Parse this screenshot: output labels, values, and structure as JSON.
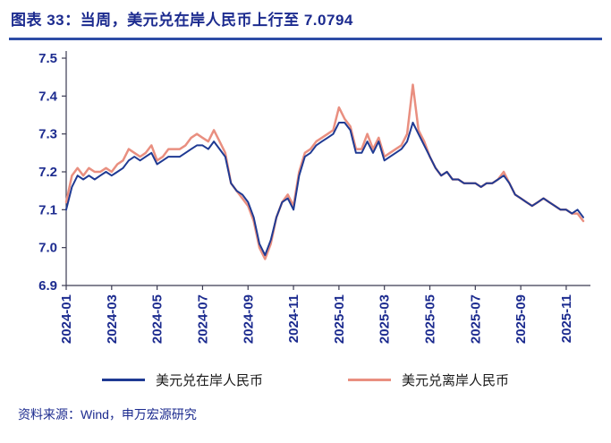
{
  "title": "图表 33：当周，美元兑在岸人民币上行至 7.0794",
  "source": "资料来源：Wind，申万宏源研究",
  "colors": {
    "title_text": "#1c2b8f",
    "rule": "#2e4da6",
    "axis_text": "#1c2b8f",
    "axis_line": "#3b3b52",
    "onshore": "#1f3a93",
    "offshore": "#e98f80"
  },
  "legend": [
    {
      "label": "美元兑在岸人民币",
      "color": "#1f3a93"
    },
    {
      "label": "美元兑离岸人民币",
      "color": "#e98f80"
    }
  ],
  "chart_data": {
    "type": "line",
    "title": "图表 33：当周，美元兑在岸人民币上行至 7.0794",
    "latest_onshore_value": 7.0794,
    "ylim": [
      6.9,
      7.5
    ],
    "y_ticks": [
      6.9,
      7.0,
      7.1,
      7.2,
      7.3,
      7.4,
      7.5
    ],
    "x_tick_labels": [
      "2024-01",
      "2024-03",
      "2024-05",
      "2024-07",
      "2024-09",
      "2024-11",
      "2025-01",
      "2025-03",
      "2025-05",
      "2025-07",
      "2025-09",
      "2025-11"
    ],
    "x_tick_every_points": 8,
    "grid": false,
    "legend_position": "bottom",
    "series": [
      {
        "name": "美元兑在岸人民币",
        "color": "#1f3a93",
        "values": [
          7.1,
          7.16,
          7.19,
          7.18,
          7.19,
          7.18,
          7.19,
          7.2,
          7.19,
          7.2,
          7.21,
          7.23,
          7.24,
          7.23,
          7.24,
          7.25,
          7.22,
          7.23,
          7.24,
          7.24,
          7.24,
          7.25,
          7.26,
          7.27,
          7.27,
          7.26,
          7.28,
          7.26,
          7.24,
          7.17,
          7.15,
          7.14,
          7.12,
          7.08,
          7.01,
          6.98,
          7.02,
          7.08,
          7.12,
          7.13,
          7.1,
          7.19,
          7.24,
          7.25,
          7.27,
          7.28,
          7.29,
          7.3,
          7.33,
          7.33,
          7.31,
          7.25,
          7.25,
          7.28,
          7.25,
          7.28,
          7.23,
          7.24,
          7.25,
          7.26,
          7.28,
          7.33,
          7.3,
          7.27,
          7.24,
          7.21,
          7.19,
          7.2,
          7.18,
          7.18,
          7.17,
          7.17,
          7.17,
          7.16,
          7.17,
          7.17,
          7.18,
          7.19,
          7.17,
          7.14,
          7.13,
          7.12,
          7.11,
          7.12,
          7.13,
          7.12,
          7.11,
          7.1,
          7.1,
          7.09,
          7.1,
          7.08
        ]
      },
      {
        "name": "美元兑离岸人民币",
        "color": "#e98f80",
        "values": [
          7.12,
          7.19,
          7.21,
          7.19,
          7.21,
          7.2,
          7.2,
          7.21,
          7.2,
          7.22,
          7.23,
          7.26,
          7.25,
          7.24,
          7.25,
          7.27,
          7.23,
          7.24,
          7.26,
          7.26,
          7.26,
          7.27,
          7.29,
          7.3,
          7.29,
          7.28,
          7.31,
          7.28,
          7.25,
          7.17,
          7.15,
          7.13,
          7.11,
          7.07,
          7.0,
          6.97,
          7.01,
          7.08,
          7.12,
          7.14,
          7.11,
          7.2,
          7.25,
          7.26,
          7.28,
          7.29,
          7.3,
          7.31,
          7.37,
          7.34,
          7.32,
          7.26,
          7.26,
          7.3,
          7.26,
          7.29,
          7.24,
          7.25,
          7.26,
          7.27,
          7.3,
          7.43,
          7.31,
          7.28,
          7.24,
          7.21,
          7.19,
          7.2,
          7.18,
          7.18,
          7.17,
          7.17,
          7.17,
          7.16,
          7.17,
          7.17,
          7.18,
          7.2,
          7.17,
          7.14,
          7.13,
          7.12,
          7.11,
          7.12,
          7.13,
          7.12,
          7.11,
          7.1,
          7.1,
          7.09,
          7.09,
          7.07
        ]
      }
    ]
  }
}
